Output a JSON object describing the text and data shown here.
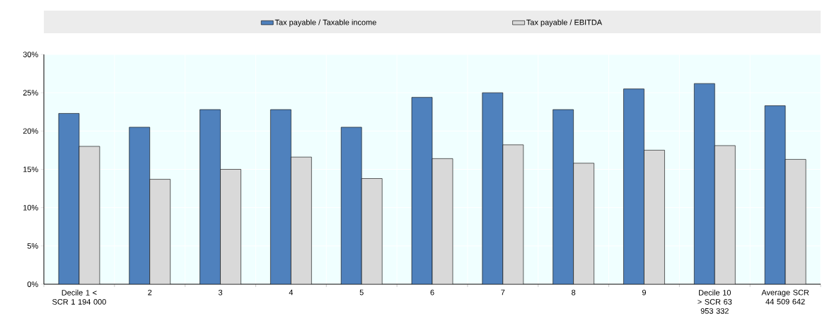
{
  "chart_data": {
    "type": "bar",
    "categories": [
      "Decile 1 < SCR 1 194 000",
      "2",
      "3",
      "4",
      "5",
      "6",
      "7",
      "8",
      "9",
      "Decile 10 > SCR 63 953 332",
      "Average SCR 44 509 642"
    ],
    "series": [
      {
        "name": "Tax payable / Taxable income",
        "color": "#4f81bd",
        "values": [
          22.3,
          20.5,
          22.8,
          22.8,
          20.5,
          24.4,
          25.0,
          22.8,
          25.5,
          26.2,
          23.3
        ]
      },
      {
        "name": "Tax payable / EBITDA",
        "color": "#d9d9d9",
        "values": [
          18.0,
          13.7,
          15.0,
          16.6,
          13.8,
          16.4,
          18.2,
          15.8,
          17.5,
          18.1,
          16.3
        ]
      }
    ],
    "ylim": [
      0,
      30
    ],
    "yticks": [
      {
        "value": 0,
        "label": "0%"
      },
      {
        "value": 5,
        "label": "5%"
      },
      {
        "value": 10,
        "label": "10%"
      },
      {
        "value": 15,
        "label": "15%"
      },
      {
        "value": 20,
        "label": "20%"
      },
      {
        "value": 25,
        "label": "25%"
      },
      {
        "value": 30,
        "label": "30%"
      }
    ],
    "grid": true,
    "legend": "top"
  }
}
